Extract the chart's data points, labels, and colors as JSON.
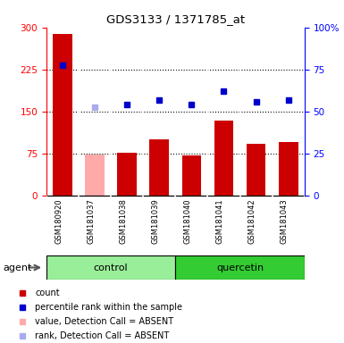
{
  "title": "GDS3133 / 1371785_at",
  "samples": [
    "GSM180920",
    "GSM181037",
    "GSM181038",
    "GSM181039",
    "GSM181040",
    "GSM181041",
    "GSM181042",
    "GSM181043"
  ],
  "bar_values": [
    288,
    73,
    76,
    100,
    72,
    133,
    92,
    95
  ],
  "bar_colors": [
    "#cc0000",
    "#ffaaaa",
    "#cc0000",
    "#cc0000",
    "#cc0000",
    "#cc0000",
    "#cc0000",
    "#cc0000"
  ],
  "rank_values": [
    77.3,
    52.7,
    54.0,
    56.7,
    54.3,
    62.3,
    56.0,
    56.7
  ],
  "rank_colors": [
    "#0000cc",
    "#aaaaee",
    "#0000cc",
    "#0000cc",
    "#0000cc",
    "#0000cc",
    "#0000cc",
    "#0000cc"
  ],
  "absent_flags": [
    false,
    true,
    false,
    false,
    false,
    false,
    false,
    false
  ],
  "ylim_left": [
    0,
    300
  ],
  "ylim_right": [
    0,
    100
  ],
  "yticks_left": [
    0,
    75,
    150,
    225,
    300
  ],
  "ytick_labels_left": [
    "0",
    "75",
    "150",
    "225",
    "300"
  ],
  "yticks_right_pct": [
    0,
    25,
    50,
    75,
    100
  ],
  "ytick_labels_right": [
    "0",
    "25",
    "50",
    "75",
    "100%"
  ],
  "hgrid_at": [
    75,
    150,
    225
  ],
  "legend_items": [
    {
      "label": "count",
      "color": "#cc0000"
    },
    {
      "label": "percentile rank within the sample",
      "color": "#0000cc"
    },
    {
      "label": "value, Detection Call = ABSENT",
      "color": "#ffaaaa"
    },
    {
      "label": "rank, Detection Call = ABSENT",
      "color": "#aaaaee"
    }
  ],
  "control_label": "control",
  "quercetin_label": "quercetin",
  "agent_label": "agent",
  "bar_width": 0.6,
  "col_bg": "#d0d0d0",
  "control_bg": "#99ee99",
  "quercetin_bg": "#33cc33",
  "plot_bg": "#ffffff"
}
